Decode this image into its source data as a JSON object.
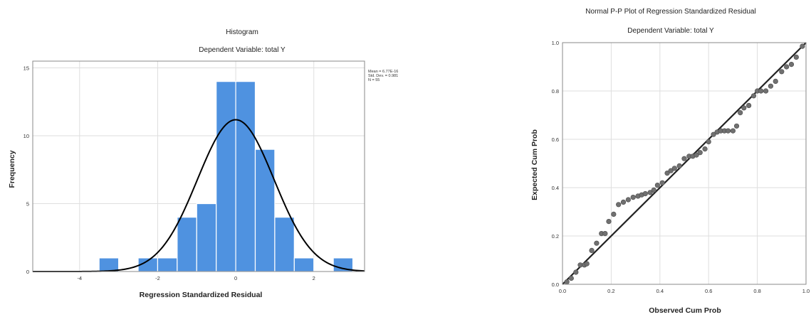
{
  "chart_data": [
    {
      "type": "bar",
      "title": "Histogram",
      "subtitle": "Dependent Variable: total Y",
      "xlabel": "Regression Standardized Residual",
      "ylabel": "Frequency",
      "xlim": [
        -5.2,
        3.3
      ],
      "ylim": [
        0,
        15.5
      ],
      "xticks": [
        -4,
        -2,
        0,
        2
      ],
      "yticks": [
        0,
        5,
        10,
        15
      ],
      "bin_width": 0.5,
      "bins": [
        {
          "start": -3.5,
          "count": 1
        },
        {
          "start": -2.5,
          "count": 1
        },
        {
          "start": -2.0,
          "count": 1
        },
        {
          "start": -1.5,
          "count": 4
        },
        {
          "start": -1.0,
          "count": 5
        },
        {
          "start": -0.5,
          "count": 14
        },
        {
          "start": 0.0,
          "count": 14
        },
        {
          "start": 0.5,
          "count": 9
        },
        {
          "start": 1.0,
          "count": 4
        },
        {
          "start": 1.5,
          "count": 1
        },
        {
          "start": 2.5,
          "count": 1
        }
      ],
      "normal_curve": {
        "mean": 0,
        "sd": 0.981,
        "n": 55
      },
      "stats": [
        "Mean = 6.77E-16",
        "Std. Dev. = 0.981",
        "N = 55"
      ],
      "grid": true,
      "bar_color": "#4f92e0",
      "curve_color": "#000000"
    },
    {
      "type": "scatter",
      "title": "Normal P-P Plot of Regression Standardized Residual",
      "subtitle": "Dependent Variable: total Y",
      "xlabel": "Observed Cum Prob",
      "ylabel": "Expected Cum Prob",
      "xlim": [
        0,
        1
      ],
      "ylim": [
        0,
        1
      ],
      "xticks": [
        "0.0",
        "0.2",
        "0.4",
        "0.6",
        "0.8",
        "1.0"
      ],
      "yticks": [
        "0.0",
        "0.2",
        "0.4",
        "0.6",
        "0.8",
        "1.0"
      ],
      "reference_line": [
        [
          0,
          0
        ],
        [
          1,
          1
        ]
      ],
      "points": [
        [
          0.018,
          0.01
        ],
        [
          0.036,
          0.025
        ],
        [
          0.055,
          0.05
        ],
        [
          0.073,
          0.08
        ],
        [
          0.09,
          0.08
        ],
        [
          0.1,
          0.085
        ],
        [
          0.12,
          0.14
        ],
        [
          0.14,
          0.17
        ],
        [
          0.16,
          0.21
        ],
        [
          0.175,
          0.21
        ],
        [
          0.19,
          0.26
        ],
        [
          0.21,
          0.29
        ],
        [
          0.23,
          0.33
        ],
        [
          0.25,
          0.34
        ],
        [
          0.27,
          0.35
        ],
        [
          0.29,
          0.36
        ],
        [
          0.31,
          0.365
        ],
        [
          0.325,
          0.37
        ],
        [
          0.34,
          0.375
        ],
        [
          0.36,
          0.38
        ],
        [
          0.375,
          0.39
        ],
        [
          0.39,
          0.41
        ],
        [
          0.41,
          0.42
        ],
        [
          0.43,
          0.46
        ],
        [
          0.445,
          0.47
        ],
        [
          0.46,
          0.48
        ],
        [
          0.48,
          0.49
        ],
        [
          0.5,
          0.52
        ],
        [
          0.52,
          0.53
        ],
        [
          0.535,
          0.53
        ],
        [
          0.55,
          0.535
        ],
        [
          0.565,
          0.545
        ],
        [
          0.585,
          0.56
        ],
        [
          0.6,
          0.59
        ],
        [
          0.62,
          0.62
        ],
        [
          0.635,
          0.63
        ],
        [
          0.65,
          0.635
        ],
        [
          0.665,
          0.635
        ],
        [
          0.68,
          0.635
        ],
        [
          0.7,
          0.635
        ],
        [
          0.715,
          0.655
        ],
        [
          0.73,
          0.71
        ],
        [
          0.745,
          0.73
        ],
        [
          0.765,
          0.74
        ],
        [
          0.785,
          0.78
        ],
        [
          0.8,
          0.8
        ],
        [
          0.815,
          0.8
        ],
        [
          0.835,
          0.8
        ],
        [
          0.855,
          0.82
        ],
        [
          0.875,
          0.84
        ],
        [
          0.9,
          0.88
        ],
        [
          0.92,
          0.9
        ],
        [
          0.94,
          0.91
        ],
        [
          0.96,
          0.94
        ],
        [
          0.985,
          0.985
        ]
      ],
      "grid": true,
      "point_color": "#707070",
      "line_color": "#222222"
    }
  ]
}
